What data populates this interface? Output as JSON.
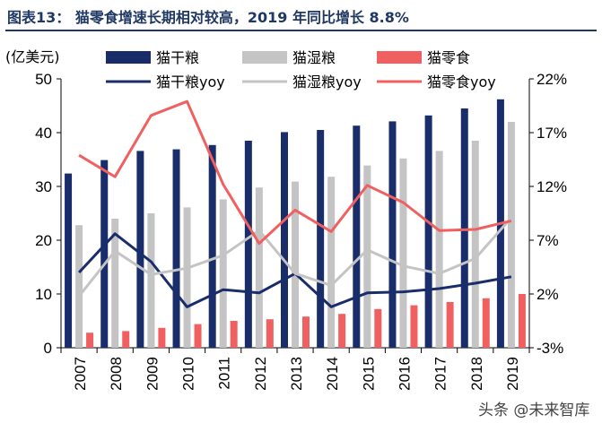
{
  "figure": {
    "title": "图表13：  猫零食增速长期相对较高，2019 年同比增长 8.8%"
  },
  "chart_data": {
    "type": "bar",
    "unit_label": "(亿美元)",
    "categories": [
      "2007",
      "2008",
      "2009",
      "2010",
      "2011",
      "2012",
      "2013",
      "2014",
      "2015",
      "2016",
      "2017",
      "2018",
      "2019"
    ],
    "y_left": {
      "ticks": [
        "0",
        "10",
        "20",
        "30",
        "40",
        "50"
      ],
      "ylim": [
        0,
        50
      ]
    },
    "y_right": {
      "ticks": [
        "-3%",
        "2%",
        "7%",
        "12%",
        "17%",
        "22%"
      ],
      "ylim": [
        -3,
        22
      ]
    },
    "bar_series": [
      {
        "name": "猫干粮",
        "color": "#1a2d6b",
        "values": [
          32.4,
          34.9,
          36.6,
          36.9,
          37.7,
          38.5,
          40.1,
          40.5,
          41.3,
          42.1,
          43.2,
          44.5,
          46.2
        ]
      },
      {
        "name": "猫湿粮",
        "color": "#c4c4c4",
        "values": [
          22.8,
          24.0,
          25.0,
          26.1,
          27.6,
          29.8,
          30.9,
          31.8,
          33.9,
          35.2,
          36.6,
          38.5,
          42.0
        ]
      },
      {
        "name": "猫零食",
        "color": "#f06060",
        "values": [
          2.8,
          3.1,
          3.7,
          4.4,
          5.0,
          5.3,
          5.8,
          6.3,
          7.2,
          7.9,
          8.5,
          9.2,
          10.0
        ]
      }
    ],
    "line_series": [
      {
        "name": "猫干粮yoy",
        "color": "#1a2d6b",
        "values": [
          4.0,
          7.6,
          5.0,
          0.8,
          2.4,
          2.1,
          3.9,
          0.8,
          2.1,
          2.2,
          2.5,
          3.0,
          3.6
        ]
      },
      {
        "name": "猫湿粮yoy",
        "color": "#c4c4c4",
        "values": [
          1.8,
          6.0,
          3.8,
          4.4,
          5.6,
          7.9,
          3.9,
          2.8,
          6.1,
          4.6,
          3.9,
          5.3,
          9.1
        ]
      },
      {
        "name": "猫零食yoy",
        "color": "#f06060",
        "values": [
          14.9,
          12.9,
          18.6,
          19.9,
          12.2,
          6.7,
          9.8,
          7.8,
          12.1,
          10.5,
          7.9,
          8.0,
          8.8
        ]
      }
    ],
    "legend_placement": "top",
    "grid": false
  },
  "watermark": {
    "text": "头条 @未来智库"
  }
}
